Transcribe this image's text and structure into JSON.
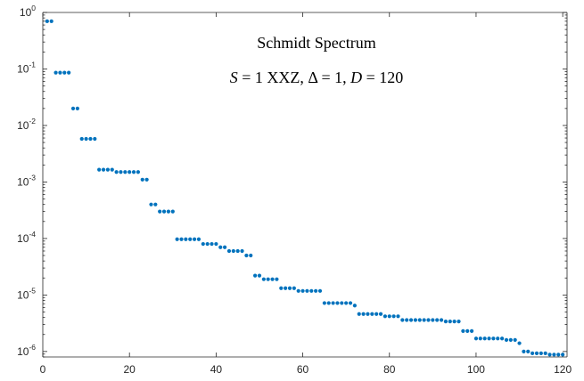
{
  "chart_data": {
    "type": "scatter",
    "title_lines": [
      "Schmidt Spectrum",
      "S = 1 XXZ, Δ = 1, D = 120"
    ],
    "xlabel": "",
    "ylabel": "",
    "yscale": "log",
    "xlim": [
      0,
      121
    ],
    "ylim": [
      8e-07,
      1
    ],
    "grid": false,
    "legend": null,
    "marker_color": "#0072BD",
    "x_ticks": [
      0,
      20,
      40,
      60,
      80,
      100,
      120
    ],
    "y_ticks": [
      {
        "value": 1,
        "base": "10",
        "exp": "0"
      },
      {
        "value": 0.1,
        "base": "10",
        "exp": "-1"
      },
      {
        "value": 0.01,
        "base": "10",
        "exp": "-2"
      },
      {
        "value": 0.001,
        "base": "10",
        "exp": "-3"
      },
      {
        "value": 0.0001,
        "base": "10",
        "exp": "-4"
      },
      {
        "value": 1e-05,
        "base": "10",
        "exp": "-5"
      },
      {
        "value": 1e-06,
        "base": "10",
        "exp": "-6"
      }
    ],
    "series": [
      {
        "x": [
          1,
          2,
          3,
          4,
          5,
          6,
          7,
          8,
          9,
          10,
          11,
          12,
          13,
          14,
          15,
          16,
          17,
          18,
          19,
          20,
          21,
          22,
          23,
          24,
          25,
          26,
          27,
          28,
          29,
          30,
          31,
          32,
          33,
          34,
          35,
          36,
          37,
          38,
          39,
          40,
          41,
          42,
          43,
          44,
          45,
          46,
          47,
          48,
          49,
          50,
          51,
          52,
          53,
          54,
          55,
          56,
          57,
          58,
          59,
          60,
          61,
          62,
          63,
          64,
          65,
          66,
          67,
          68,
          69,
          70,
          71,
          72,
          73,
          74,
          75,
          76,
          77,
          78,
          79,
          80,
          81,
          82,
          83,
          84,
          85,
          86,
          87,
          88,
          89,
          90,
          91,
          92,
          93,
          94,
          95,
          96,
          97,
          98,
          99,
          100,
          101,
          102,
          103,
          104,
          105,
          106,
          107,
          108,
          109,
          110,
          111,
          112,
          113,
          114,
          115,
          116,
          117,
          118,
          119,
          120
        ],
        "y": [
          0.7,
          0.7,
          0.086,
          0.086,
          0.086,
          0.086,
          0.02,
          0.02,
          0.0058,
          0.0058,
          0.0058,
          0.0058,
          0.00165,
          0.00165,
          0.00165,
          0.00165,
          0.0015,
          0.0015,
          0.0015,
          0.0015,
          0.0015,
          0.0015,
          0.0011,
          0.0011,
          0.0004,
          0.0004,
          0.0003,
          0.0003,
          0.0003,
          0.0003,
          9.7e-05,
          9.7e-05,
          9.7e-05,
          9.7e-05,
          9.7e-05,
          9.7e-05,
          8e-05,
          8e-05,
          8e-05,
          8e-05,
          7e-05,
          7e-05,
          6e-05,
          6e-05,
          6e-05,
          6e-05,
          5e-05,
          5e-05,
          2.2e-05,
          2.2e-05,
          1.9e-05,
          1.9e-05,
          1.9e-05,
          1.9e-05,
          1.32e-05,
          1.32e-05,
          1.32e-05,
          1.32e-05,
          1.18e-05,
          1.18e-05,
          1.18e-05,
          1.18e-05,
          1.18e-05,
          1.18e-05,
          7.2e-06,
          7.2e-06,
          7.2e-06,
          7.2e-06,
          7.2e-06,
          7.2e-06,
          7.2e-06,
          6.5e-06,
          4.6e-06,
          4.6e-06,
          4.6e-06,
          4.6e-06,
          4.6e-06,
          4.6e-06,
          4.2e-06,
          4.2e-06,
          4.2e-06,
          4.2e-06,
          3.6e-06,
          3.6e-06,
          3.6e-06,
          3.6e-06,
          3.6e-06,
          3.6e-06,
          3.6e-06,
          3.6e-06,
          3.6e-06,
          3.6e-06,
          3.4e-06,
          3.4e-06,
          3.4e-06,
          3.4e-06,
          2.3e-06,
          2.3e-06,
          2.3e-06,
          1.7e-06,
          1.7e-06,
          1.7e-06,
          1.7e-06,
          1.7e-06,
          1.7e-06,
          1.7e-06,
          1.6e-06,
          1.6e-06,
          1.6e-06,
          1.4e-06,
          1e-06,
          1e-06,
          9.3e-07,
          9.3e-07,
          9.3e-07,
          9.3e-07,
          8.8e-07,
          8.8e-07,
          8.8e-07,
          8.8e-07
        ]
      }
    ]
  }
}
